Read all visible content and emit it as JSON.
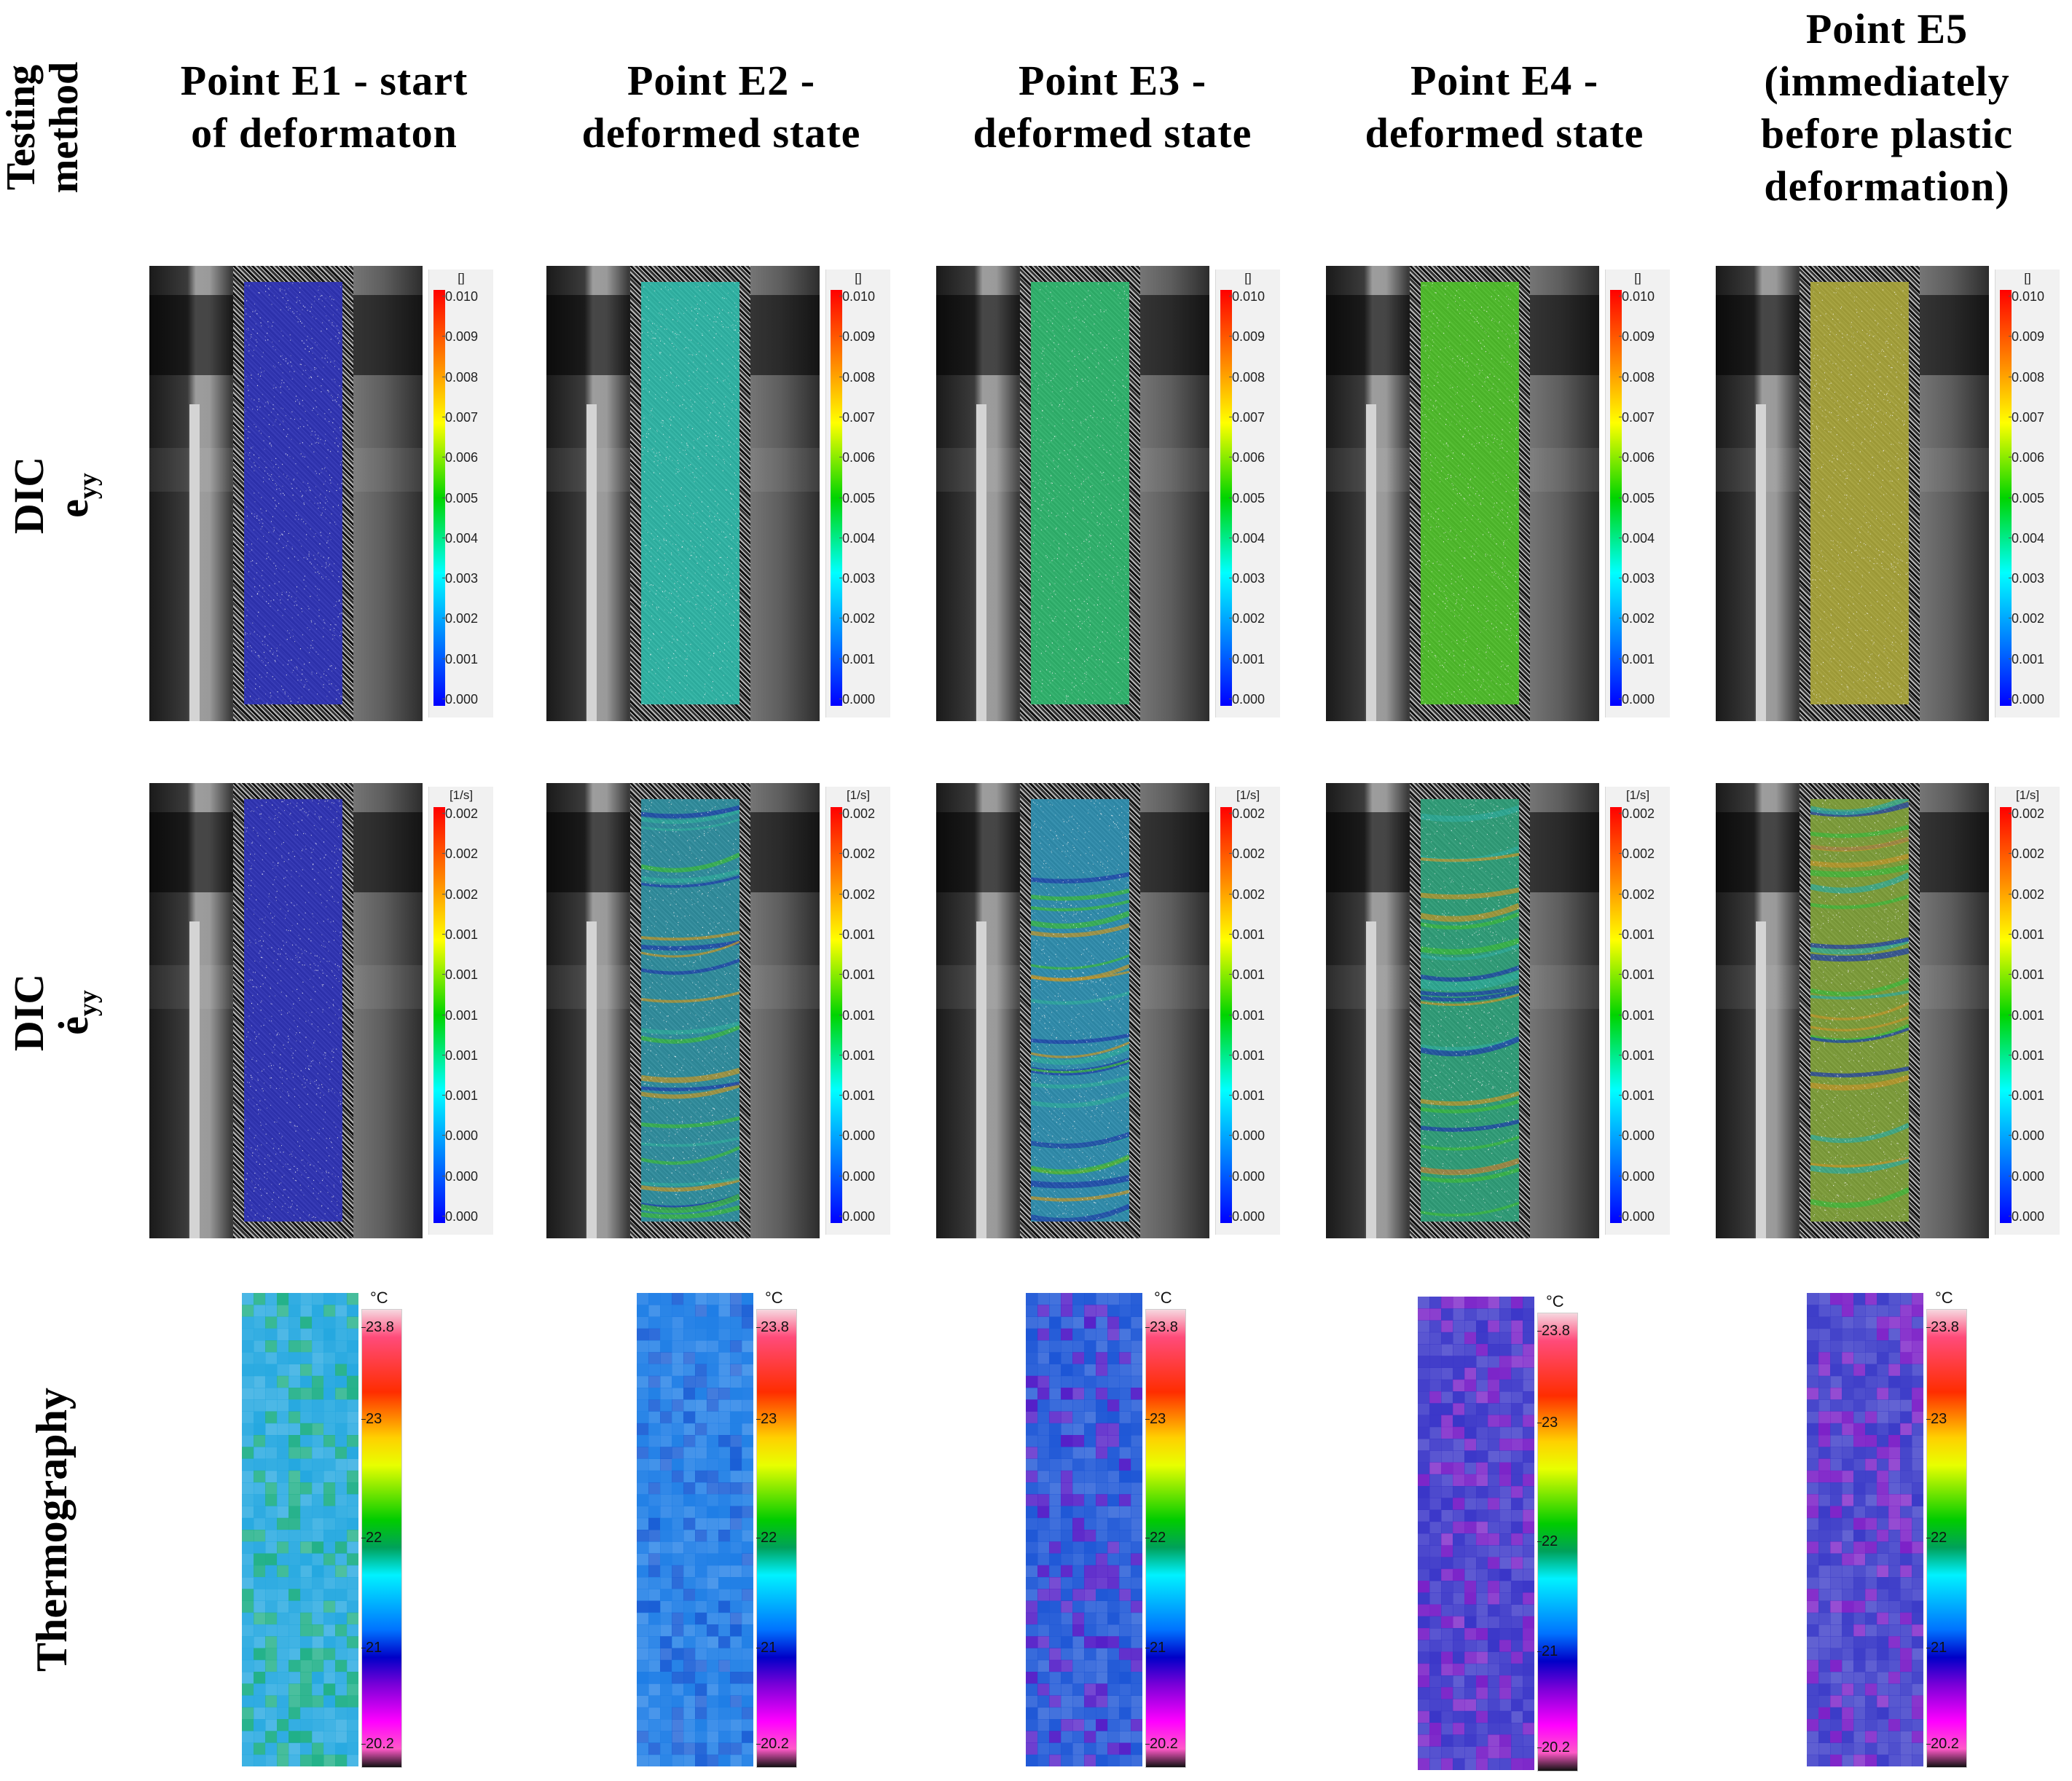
{
  "row_headers": {
    "testing_method": [
      "Testing",
      "method"
    ],
    "dic_strain": {
      "line1": "DIC",
      "symbol": "e",
      "subscript": "yy"
    },
    "dic_strain_rate": {
      "line1": "DIC",
      "symbol": "ė",
      "subscript": "yy"
    },
    "thermography": "Thermography"
  },
  "columns": [
    {
      "title": [
        "Point E1 - start",
        "of deformaton"
      ]
    },
    {
      "title": [
        "Point E2 -",
        "deformed state"
      ]
    },
    {
      "title": [
        "Point E3 -",
        "deformed state"
      ]
    },
    {
      "title": [
        "Point E4 -",
        "deformed state"
      ]
    },
    {
      "title": [
        "Point E5",
        "(immediately",
        "before plastic",
        "deformation)"
      ]
    }
  ],
  "strain_scale": {
    "unit": "[]",
    "ticks": [
      "0.010",
      "0.009",
      "0.008",
      "0.007",
      "0.006",
      "0.005",
      "0.004",
      "0.003",
      "0.002",
      "0.001",
      "0.000"
    ]
  },
  "strain_rate_scale": {
    "unit": "[1/s]",
    "ticks": [
      "0.002",
      "0.002",
      "0.002",
      "0.001",
      "0.001",
      "0.001",
      "0.001",
      "0.001",
      "0.000",
      "0.000",
      "0.000"
    ]
  },
  "thermo_scale": {
    "unit": "°C",
    "ticks": [
      "23.8",
      "23",
      "22",
      "21",
      "20.2"
    ]
  },
  "colors": {
    "strain_fields": [
      "#2f33b8",
      "#2fb8a8",
      "#2fb66e",
      "#4fbf2a",
      "#a8a43a"
    ],
    "rate_fields": [
      "#2f33b8",
      "#2f8fa0",
      "#2f8fb0",
      "#2fa07a",
      "#7fa03a"
    ],
    "thermo_base": [
      "#25a8e0",
      "#1f7ee6",
      "#1d56d6",
      "#3a36c8",
      "#3c3cc8"
    ],
    "thermo_accent": [
      "#20b088",
      "#1a5fd6",
      "#5520c8",
      "#7a22c8",
      "#7d22c8"
    ]
  }
}
